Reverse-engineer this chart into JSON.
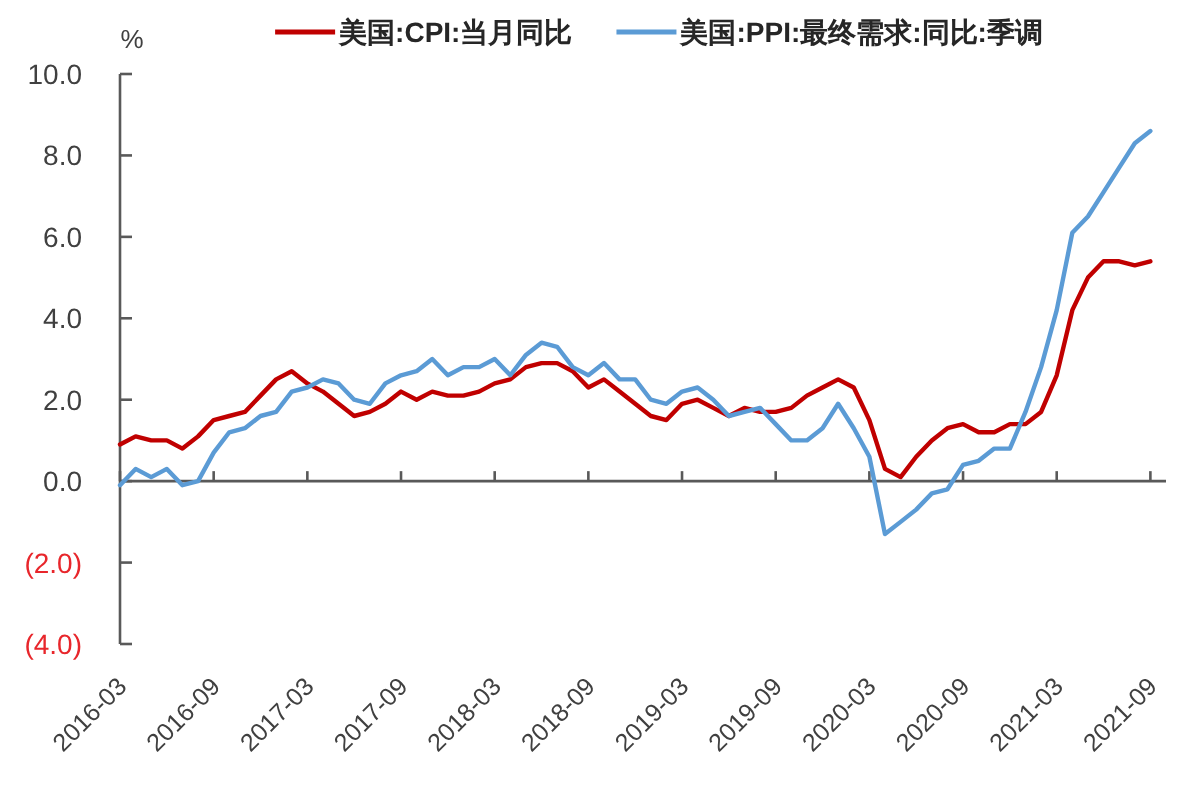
{
  "chart_data": {
    "type": "line",
    "ylabel": "%",
    "legend": "top",
    "x": [
      "2016-03",
      "2016-04",
      "2016-05",
      "2016-06",
      "2016-07",
      "2016-08",
      "2016-09",
      "2016-10",
      "2016-11",
      "2016-12",
      "2017-01",
      "2017-02",
      "2017-03",
      "2017-04",
      "2017-05",
      "2017-06",
      "2017-07",
      "2017-08",
      "2017-09",
      "2017-10",
      "2017-11",
      "2017-12",
      "2018-01",
      "2018-02",
      "2018-03",
      "2018-04",
      "2018-05",
      "2018-06",
      "2018-07",
      "2018-08",
      "2018-09",
      "2018-10",
      "2018-11",
      "2018-12",
      "2019-01",
      "2019-02",
      "2019-03",
      "2019-04",
      "2019-05",
      "2019-06",
      "2019-07",
      "2019-08",
      "2019-09",
      "2019-10",
      "2019-11",
      "2019-12",
      "2020-01",
      "2020-02",
      "2020-03",
      "2020-04",
      "2020-05",
      "2020-06",
      "2020-07",
      "2020-08",
      "2020-09",
      "2020-10",
      "2020-11",
      "2020-12",
      "2021-01",
      "2021-02",
      "2021-03",
      "2021-04",
      "2021-05",
      "2021-06",
      "2021-07",
      "2021-08",
      "2021-09"
    ],
    "series": [
      {
        "name": "美国:CPI:当月同比",
        "color": "#c00000",
        "values": [
          0.9,
          1.1,
          1.0,
          1.0,
          0.8,
          1.1,
          1.5,
          1.6,
          1.7,
          2.1,
          2.5,
          2.7,
          2.4,
          2.2,
          1.9,
          1.6,
          1.7,
          1.9,
          2.2,
          2.0,
          2.2,
          2.1,
          2.1,
          2.2,
          2.4,
          2.5,
          2.8,
          2.9,
          2.9,
          2.7,
          2.3,
          2.5,
          2.2,
          1.9,
          1.6,
          1.5,
          1.9,
          2.0,
          1.8,
          1.6,
          1.8,
          1.7,
          1.7,
          1.8,
          2.1,
          2.3,
          2.5,
          2.3,
          1.5,
          0.3,
          0.1,
          0.6,
          1.0,
          1.3,
          1.4,
          1.2,
          1.2,
          1.4,
          1.4,
          1.7,
          2.6,
          4.2,
          5.0,
          5.4,
          5.4,
          5.3,
          5.4
        ]
      },
      {
        "name": "美国:PPI:最终需求:同比:季调",
        "color": "#5b9bd5",
        "values": [
          -0.1,
          0.3,
          0.1,
          0.3,
          -0.1,
          0.0,
          0.7,
          1.2,
          1.3,
          1.6,
          1.7,
          2.2,
          2.3,
          2.5,
          2.4,
          2.0,
          1.9,
          2.4,
          2.6,
          2.7,
          3.0,
          2.6,
          2.8,
          2.8,
          3.0,
          2.6,
          3.1,
          3.4,
          3.3,
          2.8,
          2.6,
          2.9,
          2.5,
          2.5,
          2.0,
          1.9,
          2.2,
          2.3,
          2.0,
          1.6,
          1.7,
          1.8,
          1.4,
          1.0,
          1.0,
          1.3,
          1.9,
          1.3,
          0.6,
          -1.3,
          -1.0,
          -0.7,
          -0.3,
          -0.2,
          0.4,
          0.5,
          0.8,
          0.8,
          1.7,
          2.8,
          4.2,
          6.1,
          6.5,
          7.1,
          7.7,
          8.3,
          8.6
        ]
      }
    ],
    "xlim": [
      "2016-03",
      "2021-10"
    ],
    "xticks": [
      "2016-03",
      "2016-09",
      "2017-03",
      "2017-09",
      "2018-03",
      "2018-09",
      "2019-03",
      "2019-09",
      "2020-03",
      "2020-09",
      "2021-03",
      "2021-09"
    ],
    "ylim": [
      -4,
      10
    ],
    "yticks": [
      {
        "value": -4,
        "label": "(4.0)"
      },
      {
        "value": -2,
        "label": "(2.0)"
      },
      {
        "value": 0,
        "label": "0.0"
      },
      {
        "value": 2,
        "label": "2.0"
      },
      {
        "value": 4,
        "label": "4.0"
      },
      {
        "value": 6,
        "label": "6.0"
      },
      {
        "value": 8,
        "label": "8.0"
      },
      {
        "value": 10,
        "label": "10.0"
      }
    ]
  }
}
